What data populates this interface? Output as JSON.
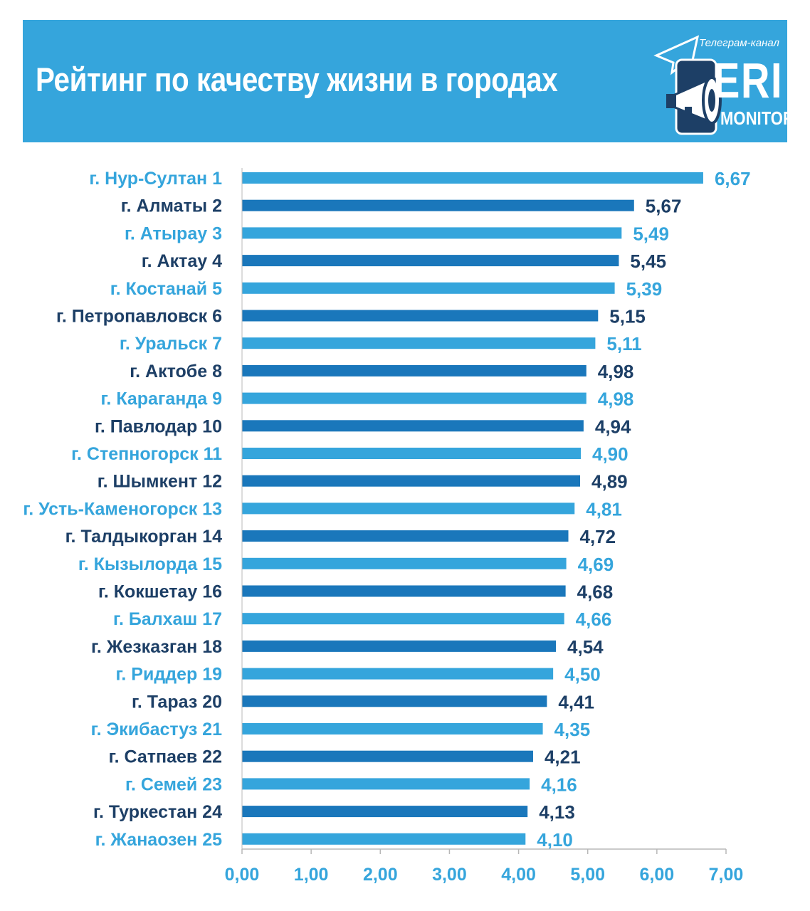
{
  "header": {
    "title": "Рейтинг по качеству жизни в городах",
    "logo_caption": "Телеграм-канал",
    "logo_main": "ERI",
    "logo_sub": "MONITOR",
    "background_color": "#35a5dc"
  },
  "chart_data": {
    "type": "bar",
    "orientation": "horizontal",
    "title": "Рейтинг по качеству жизни в городах",
    "categories": [
      "г. Нур-Султан 1",
      "г. Алматы 2",
      "г. Атырау 3",
      "г. Актау 4",
      "г. Костанай 5",
      "г. Петропавловск 6",
      "г. Уральск 7",
      "г. Актобе 8",
      "г. Караганда 9",
      "г. Павлодар 10",
      "г. Степногорск 11",
      "г. Шымкент 12",
      "г. Усть-Каменогорск 13",
      "г. Талдыкорган 14",
      "г. Кызылорда 15",
      "г. Кокшетау 16",
      "г. Балхаш 17",
      "г. Жезказган 18",
      "г. Риддер 19",
      "г. Тараз 20",
      "г. Экибастуз 21",
      "г. Сатпаев 22",
      "г. Семей 23",
      "г. Туркестан 24",
      "г. Жанаозен 25"
    ],
    "values": [
      6.67,
      5.67,
      5.49,
      5.45,
      5.39,
      5.15,
      5.11,
      4.98,
      4.98,
      4.94,
      4.9,
      4.89,
      4.81,
      4.72,
      4.69,
      4.68,
      4.66,
      4.54,
      4.5,
      4.41,
      4.35,
      4.21,
      4.16,
      4.13,
      4.1
    ],
    "value_labels": [
      "6,67",
      "5,67",
      "5,49",
      "5,45",
      "5,39",
      "5,15",
      "5,11",
      "4,98",
      "4,98",
      "4,94",
      "4,90",
      "4,89",
      "4,81",
      "4,72",
      "4,69",
      "4,68",
      "4,66",
      "4,54",
      "4,50",
      "4,41",
      "4,35",
      "4,21",
      "4,16",
      "4,13",
      "4,10"
    ],
    "xlim": [
      0,
      7
    ],
    "xticks": [
      0,
      1,
      2,
      3,
      4,
      5,
      6,
      7
    ],
    "xtick_labels": [
      "0,00",
      "1,00",
      "2,00",
      "3,00",
      "4,00",
      "5,00",
      "6,00",
      "7,00"
    ],
    "xlabel": "",
    "ylabel": "",
    "grid": false,
    "legend": "none",
    "colors": {
      "light": "#35a5dc",
      "dark": "#1a77bb",
      "dark_text": "#1d3f66",
      "axis": "#b8b8b8"
    }
  }
}
